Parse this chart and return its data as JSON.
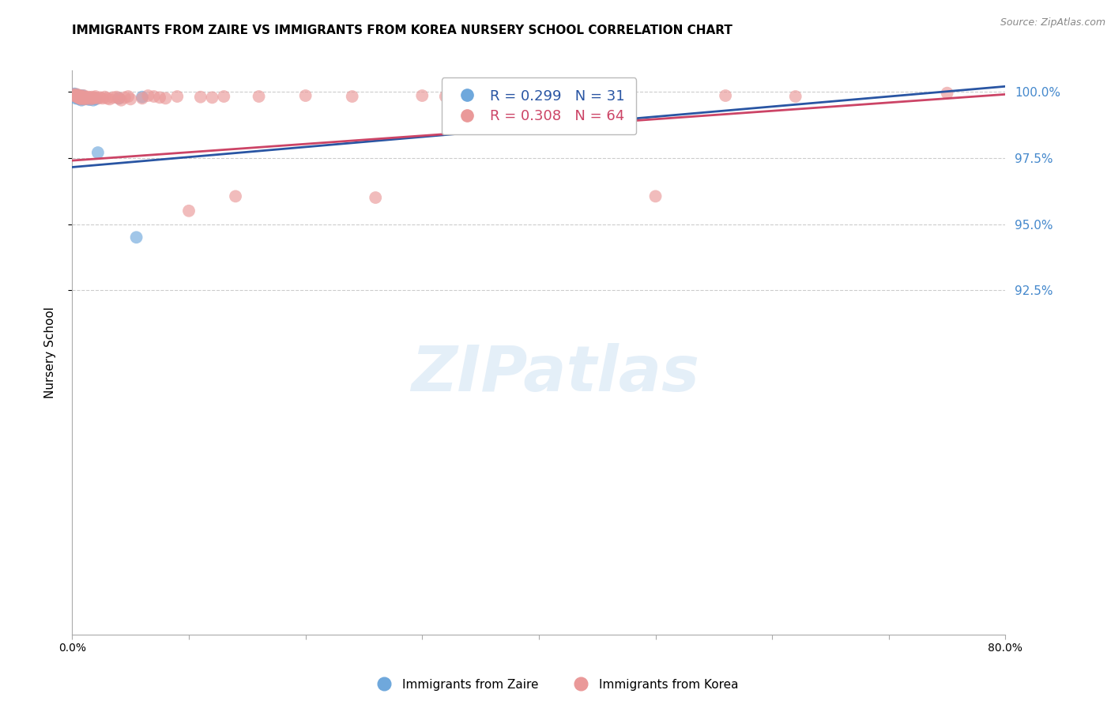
{
  "title": "IMMIGRANTS FROM ZAIRE VS IMMIGRANTS FROM KOREA NURSERY SCHOOL CORRELATION CHART",
  "source": "Source: ZipAtlas.com",
  "ylabel": "Nursery School",
  "xlim": [
    0.0,
    0.8
  ],
  "ylim": [
    0.795,
    1.008
  ],
  "yticks": [
    0.925,
    0.95,
    0.975,
    1.0
  ],
  "ytick_labels": [
    "92.5%",
    "95.0%",
    "97.5%",
    "100.0%"
  ],
  "xticks": [
    0.0,
    0.1,
    0.2,
    0.3,
    0.4,
    0.5,
    0.6,
    0.7,
    0.8
  ],
  "xtick_labels": [
    "0.0%",
    "",
    "",
    "",
    "",
    "",
    "",
    "",
    "80.0%"
  ],
  "zaire_color": "#6fa8dc",
  "korea_color": "#ea9999",
  "zaire_line_color": "#2955a3",
  "korea_line_color": "#cc4466",
  "R_zaire": 0.299,
  "N_zaire": 31,
  "R_korea": 0.308,
  "N_korea": 64,
  "legend_label_zaire": "Immigrants from Zaire",
  "legend_label_korea": "Immigrants from Korea",
  "background_color": "#ffffff",
  "grid_color": "#cccccc",
  "right_axis_color": "#4488cc",
  "zaire_line_x": [
    0.0,
    0.8
  ],
  "zaire_line_y": [
    0.9715,
    1.002
  ],
  "korea_line_x": [
    0.0,
    0.8
  ],
  "korea_line_y": [
    0.974,
    0.999
  ],
  "zaire_x": [
    0.001,
    0.002,
    0.002,
    0.003,
    0.003,
    0.003,
    0.004,
    0.004,
    0.005,
    0.005,
    0.006,
    0.006,
    0.007,
    0.007,
    0.008,
    0.008,
    0.008,
    0.009,
    0.009,
    0.01,
    0.011,
    0.012,
    0.013,
    0.015,
    0.018,
    0.02,
    0.022,
    0.04,
    0.055,
    0.06,
    0.35
  ],
  "zaire_y": [
    0.9985,
    0.999,
    0.9992,
    0.9985,
    0.998,
    0.9975,
    0.9988,
    0.9982,
    0.998,
    0.9975,
    0.9978,
    0.9972,
    0.9985,
    0.9978,
    0.998,
    0.9975,
    0.9968,
    0.9985,
    0.9972,
    0.998,
    0.9978,
    0.9975,
    0.9972,
    0.997,
    0.9968,
    0.9972,
    0.977,
    0.9975,
    0.945,
    0.998,
    0.9988
  ],
  "korea_x": [
    0.001,
    0.002,
    0.003,
    0.004,
    0.004,
    0.005,
    0.005,
    0.006,
    0.006,
    0.007,
    0.007,
    0.008,
    0.008,
    0.009,
    0.01,
    0.01,
    0.011,
    0.011,
    0.012,
    0.013,
    0.014,
    0.015,
    0.016,
    0.017,
    0.018,
    0.019,
    0.02,
    0.022,
    0.024,
    0.026,
    0.028,
    0.03,
    0.032,
    0.035,
    0.038,
    0.04,
    0.042,
    0.045,
    0.048,
    0.05,
    0.06,
    0.065,
    0.07,
    0.075,
    0.08,
    0.09,
    0.1,
    0.11,
    0.12,
    0.13,
    0.14,
    0.16,
    0.2,
    0.24,
    0.26,
    0.3,
    0.32,
    0.35,
    0.38,
    0.4,
    0.5,
    0.56,
    0.62,
    0.75
  ],
  "korea_y": [
    0.999,
    0.9985,
    0.9982,
    0.999,
    0.9985,
    0.9985,
    0.9978,
    0.9982,
    0.9975,
    0.9985,
    0.9975,
    0.9982,
    0.9972,
    0.998,
    0.9985,
    0.9975,
    0.998,
    0.9972,
    0.9978,
    0.9975,
    0.998,
    0.9978,
    0.9972,
    0.998,
    0.9975,
    0.9978,
    0.9982,
    0.9975,
    0.9978,
    0.9975,
    0.998,
    0.9975,
    0.9972,
    0.9978,
    0.998,
    0.9975,
    0.9968,
    0.9978,
    0.9982,
    0.9972,
    0.9975,
    0.9985,
    0.9982,
    0.9978,
    0.9975,
    0.9982,
    0.955,
    0.998,
    0.9978,
    0.9982,
    0.9605,
    0.9982,
    0.9985,
    0.9982,
    0.96,
    0.9985,
    0.9982,
    0.9988,
    0.9985,
    0.9982,
    0.9605,
    0.9985,
    0.9982,
    0.9995
  ]
}
